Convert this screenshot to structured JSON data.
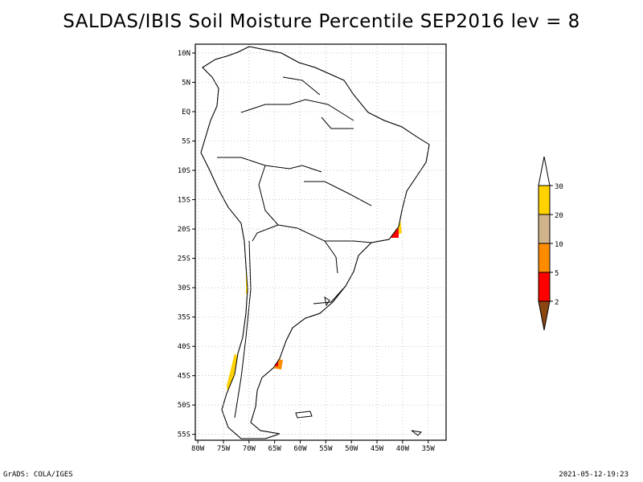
{
  "title": "SALDAS/IBIS Soil Moisture Percentile SEP2016 lev = 8",
  "chart_data": {
    "type": "map",
    "x_ticks": [
      "80W",
      "75W",
      "70W",
      "65W",
      "60W",
      "55W",
      "50W",
      "45W",
      "40W",
      "35W"
    ],
    "x_values": [
      -80,
      -75,
      -70,
      -65,
      -60,
      -55,
      -50,
      -45,
      -40,
      -35
    ],
    "y_ticks": [
      "10N",
      "5N",
      "EQ",
      "5S",
      "10S",
      "15S",
      "20S",
      "25S",
      "30S",
      "35S",
      "40S",
      "45S",
      "50S",
      "55S"
    ],
    "y_values": [
      10,
      5,
      0,
      -5,
      -10,
      -15,
      -20,
      -25,
      -30,
      -35,
      -40,
      -45,
      -50,
      -55
    ],
    "xlim": [
      -80.5,
      -31.5
    ],
    "ylim": [
      -56,
      11.5
    ],
    "grid": true,
    "legend": {
      "placement": "right",
      "labels": [
        "30",
        "20",
        "10",
        "5",
        "2"
      ],
      "colors": [
        "#ffffff",
        "#ffd200",
        "#d2b48c",
        "#ff8c00",
        "#ff0000",
        "#8b4513"
      ]
    }
  },
  "footer": {
    "left": "GrADS: COLA/IGES",
    "right": "2021-05-12-19:23"
  }
}
